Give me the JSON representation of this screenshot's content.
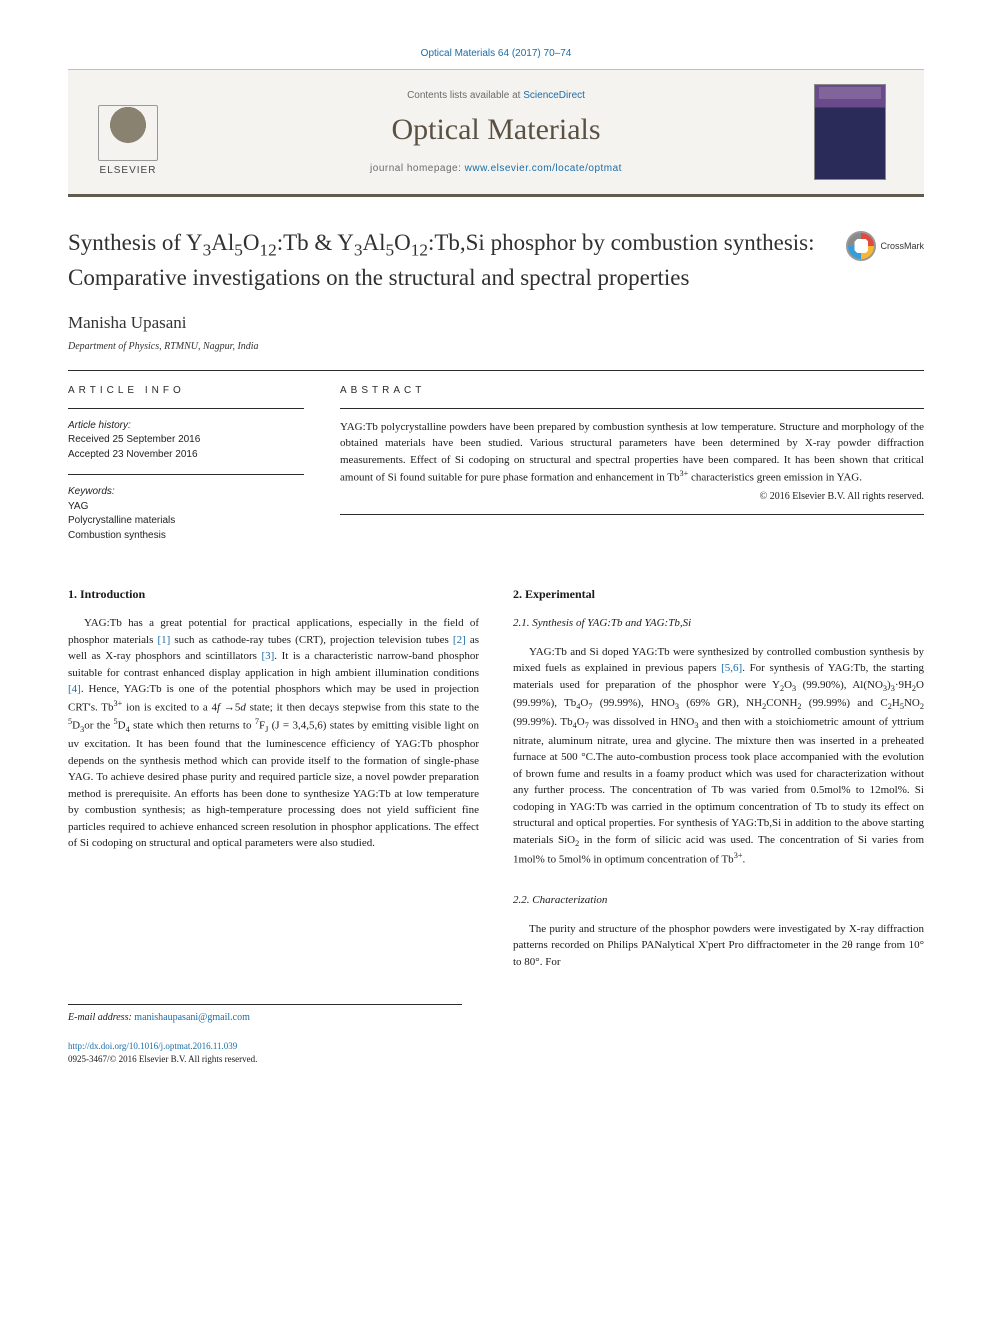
{
  "citation": "Optical Materials 64 (2017) 70–74",
  "header": {
    "contents_prefix": "Contents lists available at ",
    "contents_link": "ScienceDirect",
    "journal": "Optical Materials",
    "homepage_prefix": "journal homepage: ",
    "homepage_url": "www.elsevier.com/locate/optmat",
    "publisher": "ELSEVIER"
  },
  "crossmark_label": "CrossMark",
  "title_html": "Synthesis of Y<sub>3</sub>Al<sub>5</sub>O<sub>12</sub>:Tb & Y<sub>3</sub>Al<sub>5</sub>O<sub>12</sub>:Tb,Si phosphor by combustion synthesis: Comparative investigations on the structural and spectral properties",
  "author": "Manisha Upasani",
  "affiliation": "Department of Physics, RTMNU, Nagpur, India",
  "article_info": {
    "label": "ARTICLE INFO",
    "history_label": "Article history:",
    "received": "Received 25 September 2016",
    "accepted": "Accepted 23 November 2016",
    "keywords_label": "Keywords:",
    "keywords": [
      "YAG",
      "Polycrystalline materials",
      "Combustion synthesis"
    ]
  },
  "abstract": {
    "label": "ABSTRACT",
    "body_html": "YAG:Tb polycrystalline powders have been prepared by combustion synthesis at low temperature. Structure and morphology of the obtained materials have been studied. Various structural parameters have been determined by X-ray powder diffraction measurements. Effect of Si codoping on structural and spectral properties have been compared. It has been shown that critical amount of Si found suitable for pure phase formation and enhancement in Tb<sup>3+</sup> characteristics green emission in YAG.",
    "copyright": "© 2016 Elsevier B.V. All rights reserved."
  },
  "sections": {
    "intro_heading": "1. Introduction",
    "intro_html": "YAG:Tb has a great potential for practical applications, especially in the field of phosphor materials <span class=\"ref-link\">[1]</span> such as cathode-ray tubes (CRT), projection television tubes <span class=\"ref-link\">[2]</span> as well as X-ray phosphors and scintillators <span class=\"ref-link\">[3]</span>. It is a characteristic narrow-band phosphor suitable for contrast enhanced display application in high ambient illumination conditions <span class=\"ref-link\">[4]</span>. Hence, YAG:Tb is one of the potential phosphors which may be used in projection CRT's. Tb<sup>3+</sup> ion is excited to a 4<i>f</i> →5<i>d</i> state; it then decays stepwise from this state to the <sup>5</sup>D<sub>3</sub>or the <sup>5</sup>D<sub>4</sub> state which then returns to <sup>7</sup>F<sub>J</sub> (J = 3,4,5,6) states by emitting visible light on uv excitation. It has been found that the luminescence efficiency of YAG:Tb phosphor depends on the synthesis method which can provide itself to the formation of single-phase YAG. To achieve desired phase purity and required particle size, a novel powder preparation method is prerequisite. An efforts has been done to synthesize YAG:Tb at low temperature by combustion synthesis; as high-temperature processing does not yield sufficient fine particles required to achieve enhanced screen resolution in phosphor applications. The effect of Si codoping on structural and optical parameters were also studied.",
    "exp_heading": "2. Experimental",
    "syn_heading": "2.1. Synthesis of YAG:Tb and YAG:Tb,Si",
    "syn_html": "YAG:Tb and Si doped YAG:Tb were synthesized by controlled combustion synthesis by mixed fuels as explained in previous papers <span class=\"ref-link\">[5,6]</span>. For synthesis of YAG:Tb, the starting materials used for preparation of the phosphor were Y<sub>2</sub>O<sub>3</sub> (99.90%), Al(NO<sub>3</sub>)<sub>3</sub>·9H<sub>2</sub>O (99.99%), Tb<sub>4</sub>O<sub>7</sub> (99.99%), HNO<sub>3</sub> (69% GR), NH<sub>2</sub>CONH<sub>2</sub> (99.99%) and C<sub>2</sub>H<sub>5</sub>NO<sub>2</sub> (99.99%). Tb<sub>4</sub>O<sub>7</sub> was dissolved in HNO<sub>3</sub> and then with a stoichiometric amount of yttrium nitrate, aluminum nitrate, urea and glycine. The mixture then was inserted in a preheated furnace at 500 °C.The auto-combustion process took place accompanied with the evolution of brown fume and results in a foamy product which was used for characterization without any further process. The concentration of Tb was varied from 0.5mol% to 12mol%. Si codoping in YAG:Tb was carried in the optimum concentration of Tb to study its effect on structural and optical properties. For synthesis of YAG:Tb,Si in addition to the above starting materials SiO<sub>2</sub> in the form of silicic acid was used. The concentration of Si varies from 1mol% to 5mol% in optimum concentration of Tb<sup>3+</sup>.",
    "char_heading": "2.2. Characterization",
    "char_html": "The purity and structure of the phosphor powders were investigated by X-ray diffraction patterns recorded on Philips PANalytical X'pert Pro diffractometer in the 2θ range from 10° to 80°. For"
  },
  "footer": {
    "email_label": "E-mail address:",
    "email": "manishaupasani@gmail.com",
    "doi": "http://dx.doi.org/10.1016/j.optmat.2016.11.039",
    "issn_line": "0925-3467/© 2016 Elsevier B.V. All rights reserved."
  },
  "colors": {
    "link": "#1a6ca8",
    "rule": "#2b2b2b",
    "header_bg": "#f5f3ef",
    "journal_text": "#5a5143"
  }
}
